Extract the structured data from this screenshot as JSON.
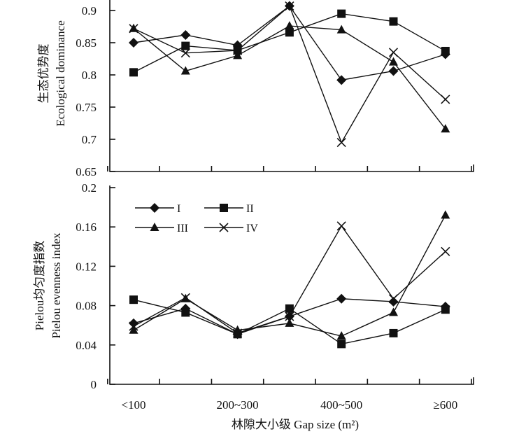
{
  "chart_data": [
    {
      "type": "line",
      "categories": [
        "<100",
        "",
        "200~300",
        "",
        "400~500",
        "",
        "≥600"
      ],
      "ylabel": "生态优势度",
      "ylabel_en": "Ecological dominance",
      "ylim": [
        0.65,
        0.9
      ],
      "yticks": [
        "0.65",
        "0.7",
        "0.75",
        "0.8",
        "0.85",
        "0.9"
      ],
      "grid": false,
      "series": [
        {
          "name": "I",
          "marker": "diamond",
          "values": [
            0.85,
            0.862,
            0.846,
            0.907,
            0.792,
            0.806,
            0.832
          ]
        },
        {
          "name": "II",
          "marker": "square",
          "values": [
            0.804,
            0.845,
            0.838,
            0.866,
            0.895,
            0.883,
            0.837
          ]
        },
        {
          "name": "III",
          "marker": "triangle",
          "values": [
            0.872,
            0.806,
            0.83,
            0.876,
            0.87,
            0.82,
            0.716
          ]
        },
        {
          "name": "IV",
          "marker": "cross",
          "values": [
            0.872,
            0.834,
            0.838,
            0.907,
            0.695,
            0.835,
            0.762
          ]
        }
      ]
    },
    {
      "type": "line",
      "categories": [
        "<100",
        "",
        "200~300",
        "",
        "400~500",
        "",
        "≥600"
      ],
      "xlabel": "林隙大小级 Gap size (m²)",
      "ylabel": "Pielou均匀度指数",
      "ylabel_en": "Pielou evenness index",
      "ylim": [
        0,
        0.2
      ],
      "yticks": [
        "0",
        "0.04",
        "0.08",
        "0.12",
        "0.16",
        "0.2"
      ],
      "grid": false,
      "legend": {
        "placement": "top-left",
        "entries": [
          "I",
          "II",
          "III",
          "IV"
        ]
      },
      "series": [
        {
          "name": "I",
          "marker": "diamond",
          "values": [
            0.062,
            0.077,
            0.051,
            0.069,
            0.087,
            0.084,
            0.079
          ]
        },
        {
          "name": "II",
          "marker": "square",
          "values": [
            0.086,
            0.073,
            0.051,
            0.077,
            0.041,
            0.052,
            0.076
          ]
        },
        {
          "name": "III",
          "marker": "triangle",
          "values": [
            0.055,
            0.087,
            0.055,
            0.062,
            0.049,
            0.073,
            0.172
          ]
        },
        {
          "name": "IV",
          "marker": "cross",
          "values": [
            0.059,
            0.088,
            0.052,
            0.069,
            0.161,
            0.087,
            0.135
          ]
        }
      ]
    }
  ]
}
